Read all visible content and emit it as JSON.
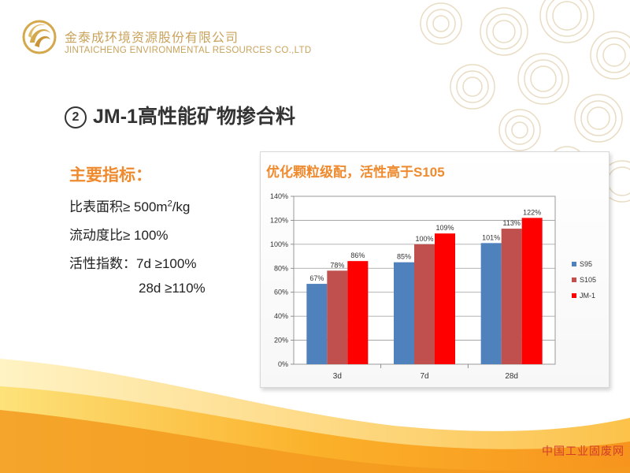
{
  "header": {
    "company_cn": "金泰成环境资源股份有限公司",
    "company_en": "JINTAICHENG ENVIRONMENTAL RESOURCES CO.,LTD",
    "logo_icon": "golden-swirl-logo-icon"
  },
  "title": {
    "number": "2",
    "text": "JM-1高性能矿物掺合料"
  },
  "metrics": {
    "heading": "主要指标：",
    "surface_area": {
      "prefix": "比表面积≥ 500m",
      "sup": "2",
      "suffix": "/kg"
    },
    "fluidity": "流动度比≥ 100%",
    "activity_label": "活性指数：",
    "activity_7d": "7d ≥100%",
    "activity_28d": "28d ≥110%"
  },
  "chart_data": {
    "type": "bar",
    "title": "优化颗粒级配，活性高于S105",
    "categories": [
      "3d",
      "7d",
      "28d"
    ],
    "series": [
      {
        "name": "S95",
        "values": [
          67,
          85,
          101
        ],
        "labels": [
          "67%",
          "85%",
          "101%"
        ],
        "color": "#4f81bd"
      },
      {
        "name": "S105",
        "values": [
          78,
          100,
          113
        ],
        "labels": [
          "78%",
          "100%",
          "113%"
        ],
        "color": "#c0504d"
      },
      {
        "name": "JM-1",
        "values": [
          86,
          109,
          122
        ],
        "labels": [
          "86%",
          "109%",
          "122%"
        ],
        "color": "#ff0000"
      }
    ],
    "ylim": [
      0,
      140
    ],
    "yticks": [
      "0%",
      "20%",
      "40%",
      "60%",
      "80%",
      "100%",
      "120%",
      "140%"
    ],
    "grid": true,
    "legend": "right"
  },
  "footer": {
    "watermark": "中国工业固废网"
  }
}
